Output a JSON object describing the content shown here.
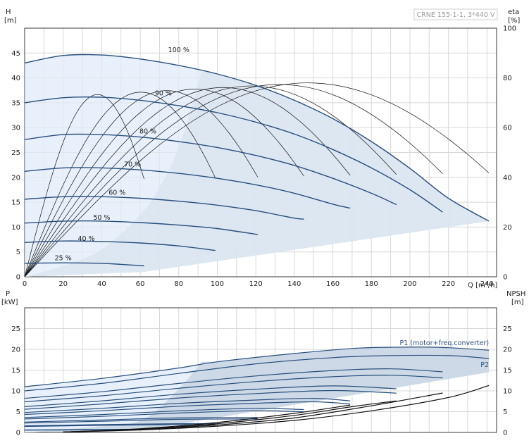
{
  "product_label": "CRNE 155-1-1, 3*440 V",
  "chart_data": [
    {
      "type": "line",
      "title": "",
      "y_title": "H",
      "y_unit": "[m]",
      "y2_title": "eta",
      "y2_unit": "[%]",
      "x_title": "Q",
      "x_unit": "[m³/h]",
      "xlim": [
        0,
        245
      ],
      "ylim": [
        0,
        50
      ],
      "y2lim": [
        0,
        100
      ],
      "x_ticks": [
        "0",
        "20",
        "40",
        "60",
        "80",
        "100",
        "120",
        "140",
        "160",
        "180",
        "200",
        "220",
        "240"
      ],
      "y_ticks": [
        "0",
        "5",
        "10",
        "15",
        "20",
        "25",
        "30",
        "35",
        "40",
        "45"
      ],
      "y2_ticks": [
        "0",
        "20",
        "40",
        "60",
        "80",
        "100"
      ],
      "grid": true,
      "colors": {
        "head_curve": "#274e7e",
        "operating_area": "#cdd9e6",
        "light_area": "#e8f1fb",
        "efficiency": "#111111"
      },
      "series": [
        {
          "speed_label": "100 %",
          "speed": 1.0,
          "label_at": [
            80,
            45.2
          ],
          "curve": [
            [
              0,
              43
            ],
            [
              20,
              44.5
            ],
            [
              40,
              44.6
            ],
            [
              60,
              43.8
            ],
            [
              80,
              42.5
            ],
            [
              100,
              40.8
            ],
            [
              120,
              38.5
            ],
            [
              140,
              35.5
            ],
            [
              160,
              31.8
            ],
            [
              180,
              27.2
            ],
            [
              200,
              21.8
            ],
            [
              220,
              15.8
            ],
            [
              241,
              11.2
            ]
          ]
        },
        {
          "speed_label": "90 %",
          "speed": 0.9,
          "label_at": [
            72,
            36.5
          ],
          "curve": [
            [
              0,
              35
            ],
            [
              20,
              36
            ],
            [
              40,
              36.1
            ],
            [
              60,
              35.5
            ],
            [
              80,
              34.4
            ],
            [
              100,
              33
            ],
            [
              120,
              31.1
            ],
            [
              140,
              28.7
            ],
            [
              160,
              25.6
            ],
            [
              180,
              21.9
            ],
            [
              200,
              17.5
            ],
            [
              217,
              13
            ]
          ]
        },
        {
          "speed_label": "80 %",
          "speed": 0.8,
          "label_at": [
            64,
            28.8
          ],
          "curve": [
            [
              0,
              27.6
            ],
            [
              20,
              28.6
            ],
            [
              40,
              28.6
            ],
            [
              60,
              28.1
            ],
            [
              80,
              27.2
            ],
            [
              100,
              26
            ],
            [
              120,
              24.4
            ],
            [
              140,
              22.4
            ],
            [
              160,
              19.8
            ],
            [
              180,
              16.8
            ],
            [
              193,
              14.5
            ]
          ]
        },
        {
          "speed_label": "70 %",
          "speed": 0.7,
          "label_at": [
            56,
            22.2
          ],
          "curve": [
            [
              0,
              21.2
            ],
            [
              20,
              21.9
            ],
            [
              40,
              21.9
            ],
            [
              60,
              21.5
            ],
            [
              80,
              20.8
            ],
            [
              100,
              19.8
            ],
            [
              120,
              18.5
            ],
            [
              140,
              16.8
            ],
            [
              160,
              14.6
            ],
            [
              169,
              13.8
            ]
          ]
        },
        {
          "speed_label": "60 %",
          "speed": 0.6,
          "label_at": [
            48,
            16.5
          ],
          "curve": [
            [
              0,
              15.6
            ],
            [
              20,
              16.1
            ],
            [
              40,
              16.1
            ],
            [
              60,
              15.8
            ],
            [
              80,
              15.2
            ],
            [
              100,
              14.4
            ],
            [
              120,
              13.3
            ],
            [
              140,
              11.8
            ],
            [
              145,
              11.6
            ]
          ]
        },
        {
          "speed_label": "50 %",
          "speed": 0.5,
          "label_at": [
            40,
            11.5
          ],
          "curve": [
            [
              0,
              10.8
            ],
            [
              20,
              11.2
            ],
            [
              40,
              11.2
            ],
            [
              60,
              10.9
            ],
            [
              80,
              10.4
            ],
            [
              100,
              9.7
            ],
            [
              121,
              8.5
            ]
          ]
        },
        {
          "speed_label": "40 %",
          "speed": 0.4,
          "label_at": [
            32,
            7.2
          ],
          "curve": [
            [
              0,
              6.9
            ],
            [
              20,
              7.2
            ],
            [
              40,
              7.1
            ],
            [
              60,
              6.8
            ],
            [
              80,
              6.2
            ],
            [
              99,
              5.3
            ]
          ]
        },
        {
          "speed_label": "25 %",
          "speed": 0.25,
          "label_at": [
            20,
            3.3
          ],
          "curve": [
            [
              0,
              2.7
            ],
            [
              20,
              2.8
            ],
            [
              40,
              2.7
            ],
            [
              50,
              2.5
            ],
            [
              62,
              2.2
            ]
          ]
        }
      ],
      "efficiency_peak_speeds": [
        1.0,
        0.9,
        0.8,
        0.7,
        0.6,
        0.5,
        0.4,
        0.25
      ],
      "efficiency_peak_percent": 78
    },
    {
      "type": "line",
      "title": "",
      "y_title": "P",
      "y_unit": "[kW]",
      "y2_title": "NPSH",
      "y2_unit": "[m]",
      "xlim": [
        0,
        245
      ],
      "ylim": [
        0,
        30
      ],
      "y_ticks": [
        "0",
        "5",
        "10",
        "15",
        "20",
        "25"
      ],
      "y2_ticks": [
        "0",
        "5",
        "10",
        "15",
        "20",
        "25"
      ],
      "grid": true,
      "series": [
        {
          "name": "P1 (motor+freq.converter)",
          "curve": [
            [
              0,
              11
            ],
            [
              40,
              13
            ],
            [
              80,
              15.5
            ],
            [
              100,
              17
            ],
            [
              140,
              19
            ],
            [
              170,
              20.2
            ],
            [
              190,
              20.5
            ],
            [
              215,
              20.5
            ],
            [
              241,
              19.8
            ]
          ]
        },
        {
          "name": "P2",
          "curve": [
            [
              0,
              10
            ],
            [
              40,
              11.8
            ],
            [
              80,
              14.2
            ],
            [
              120,
              16.5
            ],
            [
              160,
              18
            ],
            [
              190,
              18.5
            ],
            [
              220,
              18.5
            ],
            [
              241,
              17.8
            ]
          ]
        },
        {
          "name": "",
          "curve": [
            [
              0,
              8.2
            ],
            [
              40,
              9.8
            ],
            [
              80,
              11.8
            ],
            [
              120,
              13.6
            ],
            [
              160,
              14.9
            ],
            [
              190,
              15.3
            ],
            [
              217,
              14.6
            ]
          ]
        },
        {
          "name": "",
          "curve": [
            [
              0,
              6.2
            ],
            [
              40,
              7.6
            ],
            [
              80,
              9.2
            ],
            [
              120,
              10.4
            ],
            [
              160,
              11.2
            ],
            [
              193,
              10.5
            ]
          ]
        },
        {
          "name": "",
          "curve": [
            [
              0,
              4.8
            ],
            [
              40,
              5.8
            ],
            [
              80,
              7
            ],
            [
              120,
              7.8
            ],
            [
              150,
              8.2
            ],
            [
              169,
              7.6
            ]
          ]
        },
        {
          "name": "",
          "curve": [
            [
              0,
              3.6
            ],
            [
              40,
              4.3
            ],
            [
              80,
              5.2
            ],
            [
              120,
              5.8
            ],
            [
              145,
              5.5
            ]
          ]
        },
        {
          "name": "",
          "curve": [
            [
              0,
              2.5
            ],
            [
              40,
              3
            ],
            [
              80,
              3.5
            ],
            [
              121,
              3.6
            ]
          ]
        },
        {
          "name": "",
          "curve": [
            [
              0,
              1.6
            ],
            [
              40,
              1.9
            ],
            [
              80,
              2.1
            ],
            [
              99,
              2.1
            ]
          ]
        },
        {
          "name": "",
          "curve": [
            [
              0,
              0.6
            ],
            [
              30,
              0.7
            ],
            [
              62,
              0.8
            ]
          ]
        }
      ],
      "npsh_series": [
        {
          "curve": [
            [
              20,
              0.1
            ],
            [
              60,
              0.6
            ],
            [
              100,
              1.5
            ],
            [
              140,
              2.9
            ],
            [
              180,
              5.2
            ],
            [
              220,
              8.4
            ],
            [
              241,
              11.3
            ]
          ]
        },
        {
          "curve": [
            [
              20,
              0.1
            ],
            [
              60,
              0.7
            ],
            [
              100,
              1.8
            ],
            [
              140,
              3.5
            ],
            [
              180,
              6.4
            ],
            [
              217,
              9.5
            ]
          ]
        },
        {
          "curve": [
            [
              20,
              0.1
            ],
            [
              60,
              0.8
            ],
            [
              100,
              2.1
            ],
            [
              140,
              4.1
            ],
            [
              170,
              6.2
            ],
            [
              193,
              7.6
            ]
          ]
        },
        {
          "curve": [
            [
              20,
              0.1
            ],
            [
              60,
              0.9
            ],
            [
              100,
              2.4
            ],
            [
              140,
              4.6
            ],
            [
              169,
              6.6
            ]
          ]
        }
      ]
    }
  ]
}
